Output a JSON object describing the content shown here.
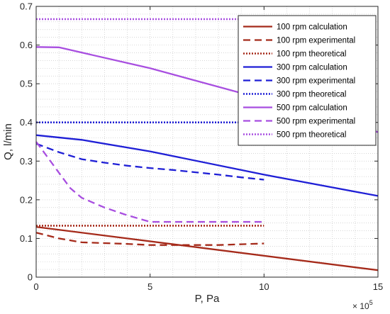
{
  "chart_data": {
    "type": "line",
    "xlabel": "P, Pa",
    "ylabel": "Q, l/min",
    "x_exponent_base": "× 10",
    "x_exponent_power": "5",
    "xlim": [
      0,
      15
    ],
    "ylim": [
      0,
      0.7
    ],
    "xticks": [
      0,
      5,
      10,
      15
    ],
    "xtick_labels": [
      "0",
      "5",
      "10",
      "15"
    ],
    "yticks": [
      0,
      0.1,
      0.2,
      0.3,
      0.4,
      0.5,
      0.6,
      0.7
    ],
    "ytick_labels": [
      "0",
      "0.1",
      "0.2",
      "0.3",
      "0.4",
      "0.5",
      "0.6",
      "0.7"
    ],
    "grid": "on",
    "legend_position": "top-right",
    "series": [
      {
        "name": "100 rpm calculation",
        "color": "#a52a1a",
        "style": "solid",
        "x": [
          0,
          15
        ],
        "y": [
          0.13,
          0.018
        ]
      },
      {
        "name": "100 rpm experimental",
        "color": "#a52a1a",
        "style": "dashed",
        "x": [
          0,
          1,
          2,
          3,
          4,
          5,
          6,
          7,
          8,
          9,
          10
        ],
        "y": [
          0.115,
          0.1,
          0.09,
          0.088,
          0.086,
          0.083,
          0.083,
          0.083,
          0.083,
          0.085,
          0.087
        ]
      },
      {
        "name": "100 rpm theoretical",
        "color": "#a52a1a",
        "style": "dotted",
        "x": [
          0,
          10
        ],
        "y": [
          0.133,
          0.133
        ]
      },
      {
        "name": "300 rpm calculation",
        "color": "#1f1fd6",
        "style": "solid",
        "x": [
          0,
          2,
          5,
          10,
          15
        ],
        "y": [
          0.367,
          0.355,
          0.325,
          0.265,
          0.21
        ]
      },
      {
        "name": "300 rpm experimental",
        "color": "#1f1fd6",
        "style": "dashed",
        "x": [
          0,
          1,
          2,
          3,
          4,
          5,
          6,
          7,
          8,
          9,
          10
        ],
        "y": [
          0.345,
          0.323,
          0.305,
          0.296,
          0.288,
          0.282,
          0.277,
          0.271,
          0.265,
          0.258,
          0.252
        ]
      },
      {
        "name": "300 rpm theoretical",
        "color": "#1f1fd6",
        "style": "dotted",
        "x": [
          0,
          10
        ],
        "y": [
          0.4,
          0.4
        ]
      },
      {
        "name": "500 rpm calculation",
        "color": "#a84ee0",
        "style": "solid",
        "x": [
          0,
          1,
          5,
          10,
          15
        ],
        "y": [
          0.595,
          0.594,
          0.54,
          0.46,
          0.375
        ]
      },
      {
        "name": "500 rpm experimental",
        "color": "#a84ee0",
        "style": "dashed",
        "x": [
          0,
          0.5,
          1,
          1.5,
          2,
          3,
          4,
          5,
          6,
          8,
          10
        ],
        "y": [
          0.35,
          0.31,
          0.27,
          0.23,
          0.205,
          0.18,
          0.16,
          0.143,
          0.143,
          0.143,
          0.143
        ]
      },
      {
        "name": "500 rpm theoretical",
        "color": "#a84ee0",
        "style": "dotted",
        "x": [
          0,
          10
        ],
        "y": [
          0.667,
          0.667
        ]
      }
    ]
  }
}
